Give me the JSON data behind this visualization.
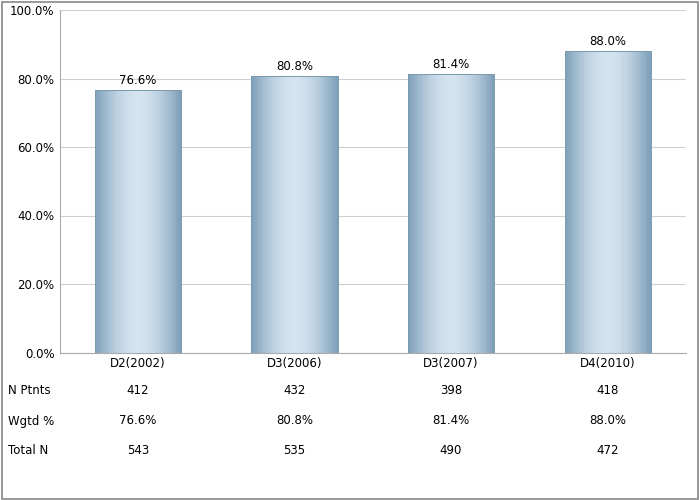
{
  "categories": [
    "D2(2002)",
    "D3(2006)",
    "D3(2007)",
    "D4(2010)"
  ],
  "values": [
    76.6,
    80.8,
    81.4,
    88.0
  ],
  "ylim": [
    0,
    100
  ],
  "yticks": [
    0,
    20,
    40,
    60,
    80,
    100
  ],
  "ytick_labels": [
    "0.0%",
    "20.0%",
    "40.0%",
    "60.0%",
    "80.0%",
    "100.0%"
  ],
  "value_labels": [
    "76.6%",
    "80.8%",
    "81.4%",
    "88.0%"
  ],
  "table_row_labels": [
    "N Ptnts",
    "Wgtd %",
    "Total N"
  ],
  "table_data": [
    [
      "412",
      "432",
      "398",
      "418"
    ],
    [
      "76.6%",
      "80.8%",
      "81.4%",
      "88.0%"
    ],
    [
      "543",
      "535",
      "490",
      "472"
    ]
  ],
  "background_color": "#ffffff",
  "bar_edge_color": "#7a9ab0",
  "grid_color": "#d0d0d0",
  "tick_fontsize": 8.5,
  "annotation_fontsize": 8.5,
  "table_fontsize": 8.5,
  "bar_width": 0.55,
  "gradient_dark_r": 0.5,
  "gradient_dark_g": 0.63,
  "gradient_dark_b": 0.73,
  "gradient_light_r": 0.83,
  "gradient_light_g": 0.89,
  "gradient_light_b": 0.94,
  "num_strips": 50
}
